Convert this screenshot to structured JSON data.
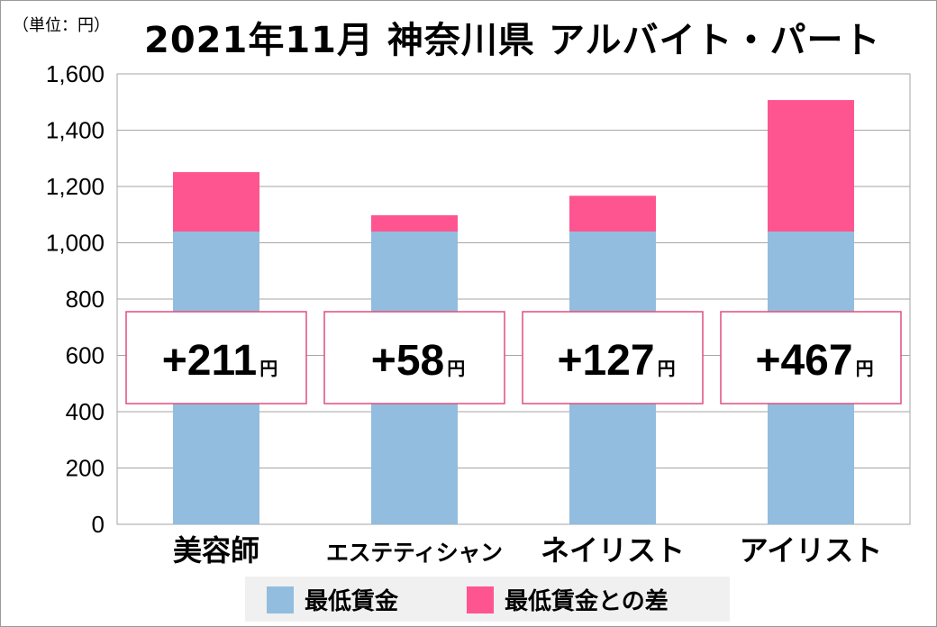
{
  "unit_note": "（単位：円）",
  "title": "2021年11月 神奈川県 アルバイト・パート",
  "chart_data": {
    "type": "bar",
    "stacked": true,
    "categories": [
      "美容師",
      "エステティシャン",
      "ネイリスト",
      "アイリスト"
    ],
    "series": [
      {
        "name": "最低賃金",
        "color": "#92bddf",
        "values": [
          1040,
          1040,
          1040,
          1040
        ]
      },
      {
        "name": "最低賃金との差",
        "color": "#fe5590",
        "values": [
          211,
          58,
          127,
          467
        ]
      }
    ],
    "ylim": [
      0,
      1600
    ],
    "yticks": [
      0,
      200,
      400,
      600,
      800,
      1000,
      1200,
      1400,
      1600
    ],
    "ytick_labels": [
      "0",
      "200",
      "400",
      "600",
      "800",
      "1,000",
      "1,200",
      "1,400",
      "1,600"
    ],
    "diff_labels": [
      "+211",
      "+58",
      "+127",
      "+467"
    ],
    "diff_unit": "円",
    "grid": true,
    "legend_position": "bottom"
  }
}
